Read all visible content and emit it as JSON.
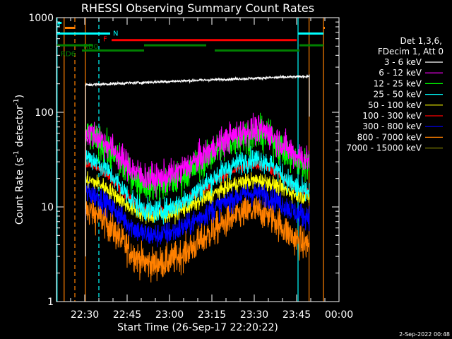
{
  "chart_data": {
    "type": "line",
    "title": "RHESSI Observing Summary Count Rates",
    "xlabel": "Start Time (26-Sep-17 22:20:22)",
    "ylabel_main": "Count Rate (s",
    "ylabel_sup1": "-1",
    "ylabel_mid": " detector",
    "ylabel_sup2": "-1",
    "ylabel_end": ")",
    "yscale": "log",
    "ylim": [
      1,
      1000
    ],
    "xlim_minutes_from_2220": [
      0,
      100
    ],
    "y_ticks": [
      {
        "value": 1,
        "label": "1"
      },
      {
        "value": 10,
        "label": "10"
      },
      {
        "value": 100,
        "label": "100"
      },
      {
        "value": 1000,
        "label": "1000"
      }
    ],
    "x_ticks": [
      {
        "minute": 10,
        "label": "22:30"
      },
      {
        "minute": 25,
        "label": "22:45"
      },
      {
        "minute": 40,
        "label": "23:00"
      },
      {
        "minute": 55,
        "label": "23:15"
      },
      {
        "minute": 70,
        "label": "23:30"
      },
      {
        "minute": 85,
        "label": "23:45"
      },
      {
        "minute": 100,
        "label": "00:00"
      }
    ],
    "legend_header": [
      "Det 1,3,6,",
      "FDecim 1, Att 0"
    ],
    "series": [
      {
        "name": "3 - 6 keV",
        "color": "#ffffff",
        "kind": "flat",
        "base": 195,
        "end": 240,
        "noise": 0.04
      },
      {
        "name": "6 - 12 keV",
        "color": "#ff00ff",
        "kind": "orbit",
        "edge": 60,
        "min": 20,
        "peak": 65,
        "noise": 0.18
      },
      {
        "name": "12 - 25 keV",
        "color": "#00ff00",
        "kind": "orbit",
        "edge": 55,
        "min": 17,
        "peak": 58,
        "noise": 0.2
      },
      {
        "name": "25 - 50 keV",
        "color": "#00ffff",
        "kind": "orbit",
        "edge": 33,
        "min": 9,
        "peak": 32,
        "noise": 0.14
      },
      {
        "name": "50 - 100 keV",
        "color": "#ffff00",
        "kind": "orbit",
        "edge": 19,
        "min": 8,
        "peak": 19,
        "noise": 0.1
      },
      {
        "name": "100 - 300 keV",
        "color": "#ff0000",
        "kind": "orbit",
        "edge": 28,
        "min": 9,
        "peak": 28,
        "noise": 0.07
      },
      {
        "name": "300 - 800 keV",
        "color": "#0000ff",
        "kind": "orbit",
        "edge": 14,
        "min": 5,
        "peak": 14,
        "noise": 0.15
      },
      {
        "name": "800 - 7000 keV",
        "color": "#ff8000",
        "kind": "orbit",
        "edge": 9,
        "min": 2.5,
        "peak": 9,
        "noise": 0.2
      },
      {
        "name": "7000 - 15000 keV",
        "color": "#808000",
        "kind": "none"
      }
    ],
    "data_window_minutes": [
      10.3,
      89.5
    ],
    "dip_center_minute": 34,
    "peak_center_minute": 71,
    "vertical_markers": [
      {
        "minute": 0.2,
        "color": "#00ffff",
        "style": "solid"
      },
      {
        "minute": 2.7,
        "color": "#ff8000",
        "style": "solid"
      },
      {
        "minute": 6.5,
        "color": "#ff8000",
        "style": "dashed"
      },
      {
        "minute": 10.2,
        "color": "#ff8000",
        "style": "solid"
      },
      {
        "minute": 15.0,
        "color": "#00ffff",
        "style": "dashed"
      },
      {
        "minute": 85.5,
        "color": "#00ffff",
        "style": "solid"
      },
      {
        "minute": 89.4,
        "color": "#ff8000",
        "style": "solid"
      },
      {
        "minute": 94.5,
        "color": "#ff8000",
        "style": "solid"
      },
      {
        "minute": 104.0,
        "color": "#ff8000",
        "style": "dashed"
      }
    ],
    "flag_bars": [
      {
        "label": "S",
        "color": "#00ffff",
        "y": 880,
        "x1": 0.5,
        "x2": 1.8
      },
      {
        "label": "",
        "color": "#ff8000",
        "y": 780,
        "x1": 3,
        "x2": 6.5
      },
      {
        "label": "N",
        "color": "#00ffff",
        "y": 680,
        "x1": 0,
        "x2": 19
      },
      {
        "label": "",
        "color": "#00ffff",
        "y": 680,
        "x1": 85.5,
        "x2": 104
      },
      {
        "label": "",
        "color": "#ff8000",
        "y": 780,
        "x1": 95,
        "x2": 103
      },
      {
        "label": "F",
        "color": "#ff0000",
        "y": 580,
        "x1": 19.5,
        "x2": 85
      },
      {
        "label": "RD0",
        "color": "#008000",
        "y": 510,
        "x1": 0,
        "x2": 13
      },
      {
        "label": "",
        "color": "#008000",
        "y": 510,
        "x1": 31,
        "x2": 53
      },
      {
        "label": "",
        "color": "#008000",
        "y": 510,
        "x1": 86,
        "x2": 104
      },
      {
        "label": "RD6",
        "color": "#008000",
        "y": 450,
        "x1": 9,
        "x2": 31
      },
      {
        "label": "",
        "color": "#008000",
        "y": 450,
        "x1": 56,
        "x2": 86
      }
    ],
    "timestamp": "2-Sep-2022 00:48"
  }
}
